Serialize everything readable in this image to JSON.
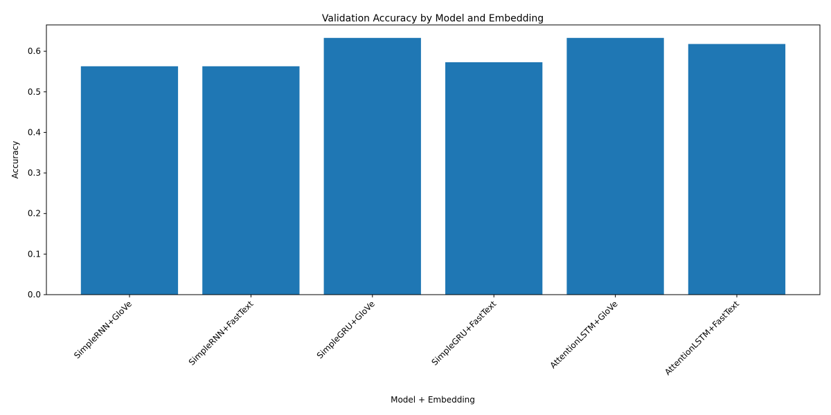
{
  "chart_data": {
    "type": "bar",
    "title": "Validation Accuracy by Model and Embedding",
    "xlabel": "Model + Embedding",
    "ylabel": "Accuracy",
    "categories": [
      "SimpleRNN+GloVe",
      "SimpleRNN+FastText",
      "SimpleGRU+GloVe",
      "SimpleGRU+FastText",
      "AttentionLSTM+GloVe",
      "AttentionLSTM+FastText"
    ],
    "values": [
      0.563,
      0.563,
      0.633,
      0.573,
      0.633,
      0.618
    ],
    "ylim": [
      0,
      0.665
    ],
    "yticks": [
      0.0,
      0.1,
      0.2,
      0.3,
      0.4,
      0.5,
      0.6
    ],
    "ytick_labels": [
      "0.0",
      "0.1",
      "0.2",
      "0.3",
      "0.4",
      "0.5",
      "0.6"
    ],
    "bar_color": "#1f77b4",
    "grid": false,
    "legend": "none"
  }
}
